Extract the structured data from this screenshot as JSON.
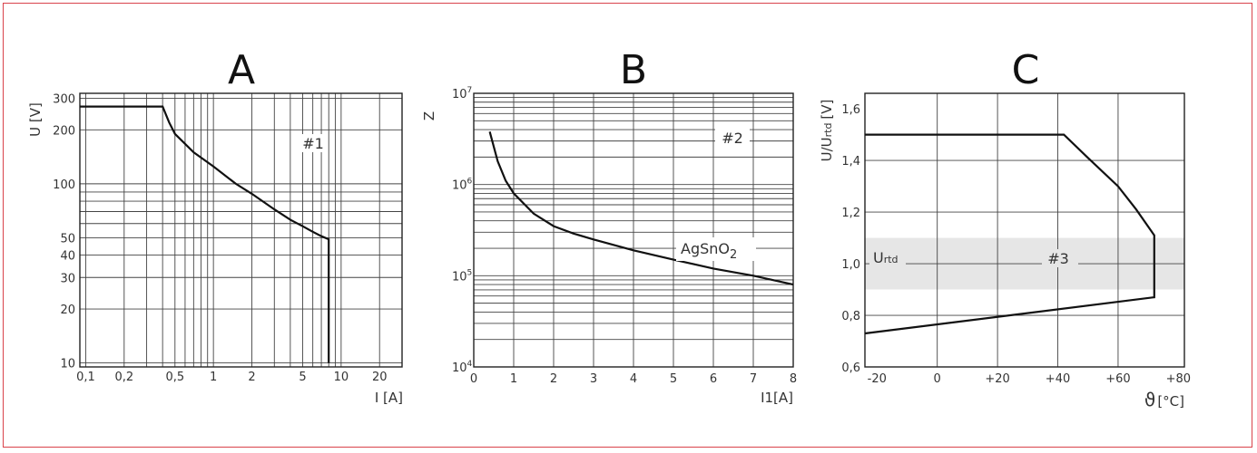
{
  "chart_data": [
    {
      "panel": "A",
      "type": "line",
      "scale": "log-log",
      "ylabel": "U [V]",
      "xlabel": "I [A]",
      "annotation": "#1",
      "x_ticks": [
        "0,1",
        "0,2",
        "0,5",
        "1",
        "2",
        "5",
        "10",
        "20"
      ],
      "y_ticks": [
        "10",
        "20",
        "30",
        "40",
        "50",
        "100",
        "200",
        "300"
      ],
      "xlim": [
        0.09,
        30
      ],
      "ylim": [
        9.5,
        320
      ],
      "series": [
        {
          "name": "",
          "x": [
            0.09,
            0.4,
            0.45,
            0.5,
            0.7,
            1,
            1.5,
            2,
            3,
            4,
            5,
            6,
            7,
            8,
            8,
            8
          ],
          "y": [
            270,
            270,
            220,
            190,
            150,
            125,
            100,
            88,
            72,
            63,
            58,
            54,
            51,
            49,
            25,
            10
          ]
        }
      ]
    },
    {
      "panel": "B",
      "type": "line",
      "scale": "semi-log-y",
      "ylabel": "Z",
      "xlabel": "I1[A]",
      "annotation": "#2",
      "y_tick_labels": [
        {
          "base": "10",
          "exp": "4"
        },
        {
          "base": "10",
          "exp": "5"
        },
        {
          "base": "10",
          "exp": "6"
        },
        {
          "base": "10",
          "exp": "7"
        }
      ],
      "x_ticks": [
        "0",
        "1",
        "2",
        "3",
        "4",
        "5",
        "6",
        "7",
        "8"
      ],
      "xlim": [
        0,
        8
      ],
      "ylim": [
        10000,
        10000000
      ],
      "series": [
        {
          "name": "AgSnO",
          "name_sub": "2",
          "x": [
            0.4,
            0.6,
            0.8,
            1.0,
            1.5,
            2,
            2.5,
            3,
            4,
            5,
            6,
            7,
            8
          ],
          "y": [
            3800000,
            1800000,
            1100000,
            800000,
            480000,
            350000,
            290000,
            250000,
            190000,
            150000,
            120000,
            100000,
            80000
          ]
        }
      ]
    },
    {
      "panel": "C",
      "type": "line",
      "ylabel": "U/U",
      "ylabel_sub": "rtd",
      "ylabel_unit": "[V]",
      "xlabel_symbol": "ϑ",
      "xlabel_unit": "[°C]",
      "annotation": "#3",
      "band_label": "U",
      "band_label_sub": "rtd",
      "band_range": [
        0.9,
        1.1
      ],
      "x_ticks": [
        "-20",
        "0",
        "+20",
        "+40",
        "+60",
        "+80"
      ],
      "y_ticks": [
        "0,6",
        "0,8",
        "1,0",
        "1,2",
        "1,4",
        "1,6"
      ],
      "xlim": [
        -24,
        82
      ],
      "ylim": [
        0.6,
        1.66
      ],
      "series": [
        {
          "name": "",
          "x": [
            -24,
            42,
            50,
            60,
            66,
            72,
            72,
            72,
            -24
          ],
          "y": [
            1.5,
            1.5,
            1.41,
            1.3,
            1.21,
            1.11,
            0.99,
            0.87,
            0.73
          ]
        }
      ],
      "band_color": "#e6e6e6"
    }
  ]
}
